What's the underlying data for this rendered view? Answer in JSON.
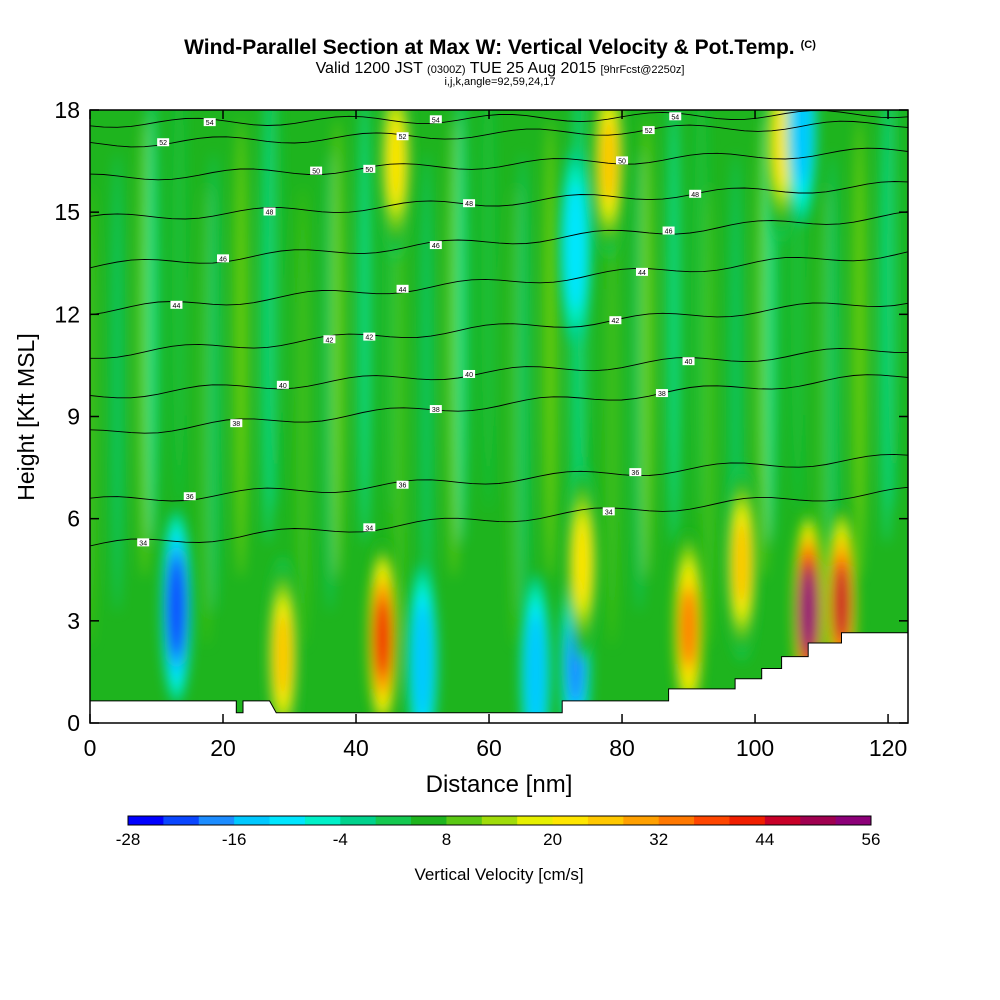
{
  "chart_data": {
    "type": "heatmap",
    "title": "Wind-Parallel Section at Max W: Vertical Velocity & Pot.Temp.",
    "title_tag": "(C)",
    "subtitle": {
      "prefix": "Valid 1200 JST",
      "utc": "(0300Z)",
      "date": "TUE 25 Aug 2015",
      "forecast": "[9hrFcst@2250z]"
    },
    "info_line": "i,j,k,angle=92,59,24,17",
    "xlabel": "Distance [nm]",
    "ylabel": "Height [Kft MSL]",
    "xlim": [
      0,
      123
    ],
    "ylim": [
      0,
      18
    ],
    "xticks": [
      "0",
      "20",
      "40",
      "60",
      "80",
      "100",
      "120"
    ],
    "yticks": [
      "0",
      "3",
      "6",
      "9",
      "12",
      "15",
      "18"
    ],
    "colorbar": {
      "label": "Vertical Velocity [cm/s]",
      "tick_labels": [
        "-28",
        "-16",
        "-4",
        "8",
        "20",
        "32",
        "44",
        "56"
      ],
      "min": -28,
      "max": 56,
      "step": 4,
      "colors": [
        "#0000ff",
        "#0a46ff",
        "#1c8cff",
        "#00c8ff",
        "#00e6ff",
        "#00f0c8",
        "#00d28c",
        "#14c850",
        "#1eb41e",
        "#5ac814",
        "#a0dc0a",
        "#e6f000",
        "#ffe600",
        "#ffc800",
        "#ffa000",
        "#ff7800",
        "#ff4600",
        "#f01e00",
        "#c80028",
        "#a00050",
        "#8c0078"
      ]
    },
    "vertical_velocity_cells": [
      {
        "x": 13,
        "y": 3.4,
        "w": -24
      },
      {
        "x": 29,
        "y": 2.0,
        "w": 24
      },
      {
        "x": 44,
        "y": 2.5,
        "w": 40
      },
      {
        "x": 50,
        "y": 1.8,
        "w": -16
      },
      {
        "x": 67,
        "y": 1.5,
        "w": -16
      },
      {
        "x": 73,
        "y": 1.8,
        "w": -18
      },
      {
        "x": 74,
        "y": 4.7,
        "w": 20
      },
      {
        "x": 90,
        "y": 2.8,
        "w": 32
      },
      {
        "x": 98,
        "y": 4.7,
        "w": 24
      },
      {
        "x": 108,
        "y": 3.3,
        "w": 56
      },
      {
        "x": 113,
        "y": 3.5,
        "w": 44
      },
      {
        "x": 46,
        "y": 16.5,
        "w": 20
      },
      {
        "x": 78,
        "y": 16.5,
        "w": 24
      },
      {
        "x": 104,
        "y": 17.0,
        "w": 20
      },
      {
        "x": 73,
        "y": 14.0,
        "w": -12
      },
      {
        "x": 107,
        "y": 17.5,
        "w": -16
      }
    ],
    "theta_contours": [
      {
        "label": "34",
        "y_left": 5.2,
        "y_right": 6.8
      },
      {
        "label": "36",
        "y_left": 6.5,
        "y_right": 7.8
      },
      {
        "label": "38",
        "y_left": 8.5,
        "y_right": 10.2
      },
      {
        "label": "40",
        "y_left": 9.6,
        "y_right": 11.0
      },
      {
        "label": "42",
        "y_left": 10.8,
        "y_right": 12.4
      },
      {
        "label": "44",
        "y_left": 12.1,
        "y_right": 13.8
      },
      {
        "label": "46",
        "y_left": 13.4,
        "y_right": 14.9
      },
      {
        "label": "48",
        "y_left": 14.8,
        "y_right": 15.8
      },
      {
        "label": "50",
        "y_left": 16.0,
        "y_right": 16.8
      },
      {
        "label": "52",
        "y_left": 17.0,
        "y_right": 17.6
      },
      {
        "label": "54",
        "y_left": 17.6,
        "y_right": 17.9
      }
    ],
    "terrain": [
      [
        0,
        0.65
      ],
      [
        22,
        0.65
      ],
      [
        22,
        0.3
      ],
      [
        23,
        0.3
      ],
      [
        23,
        0.65
      ],
      [
        27,
        0.65
      ],
      [
        28,
        0.3
      ],
      [
        71,
        0.3
      ],
      [
        71,
        0.65
      ],
      [
        87,
        0.65
      ],
      [
        87,
        1.0
      ],
      [
        97,
        1.0
      ],
      [
        97,
        1.3
      ],
      [
        101,
        1.3
      ],
      [
        101,
        1.6
      ],
      [
        104,
        1.6
      ],
      [
        104,
        1.95
      ],
      [
        108,
        1.95
      ],
      [
        108,
        2.35
      ],
      [
        113,
        2.35
      ],
      [
        113,
        2.65
      ],
      [
        123,
        2.65
      ]
    ]
  }
}
